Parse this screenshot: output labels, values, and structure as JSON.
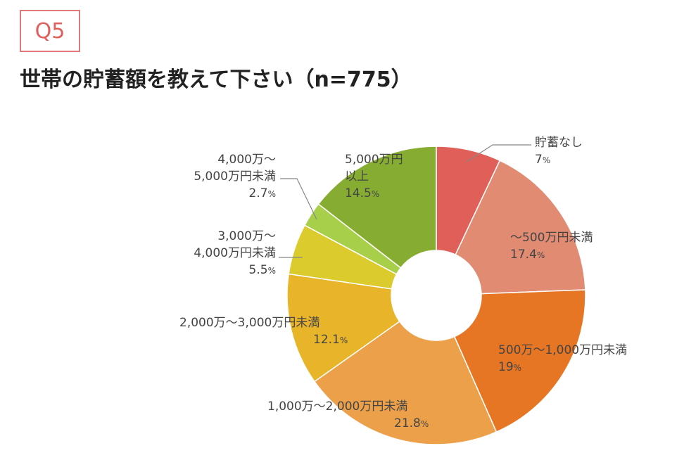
{
  "question_badge": "Q5",
  "page_title": "世帯の貯蓄額を教えて下さい（n=775）",
  "chart_data": {
    "type": "pie",
    "donut": true,
    "title": "世帯の貯蓄額を教えて下さい（n=775）",
    "categories": [
      "貯蓄なし",
      "～500万円未満",
      "500万～1,000万円未満",
      "1,000万～2,000万円未満",
      "2,000万～3,000万円未満",
      "3,000万～4,000万円未満",
      "4,000万～5,000万円未満",
      "5,000万円以上"
    ],
    "values": [
      7,
      17.4,
      19,
      21.8,
      12.1,
      5.5,
      2.7,
      14.5
    ],
    "value_labels": [
      "7",
      "17.4",
      "19",
      "21.8",
      "12.1",
      "5.5",
      "2.7",
      "14.5"
    ],
    "label_lines": [
      [
        "貯蓄なし"
      ],
      [
        "～500万円未満"
      ],
      [
        "500万～1,000万円未満"
      ],
      [
        "1,000万～2,000万円未満"
      ],
      [
        "2,000万～3,000万円未満"
      ],
      [
        "3,000万～",
        "4,000万円未満"
      ],
      [
        "4,000万～",
        "5,000万円未満"
      ],
      [
        "5,000万円",
        "以上"
      ]
    ],
    "unit": "%",
    "colors": [
      "#e05f58",
      "#e08b72",
      "#e67624",
      "#eda04a",
      "#e8b52a",
      "#dccb2c",
      "#a8cf4a",
      "#86ad32"
    ]
  }
}
